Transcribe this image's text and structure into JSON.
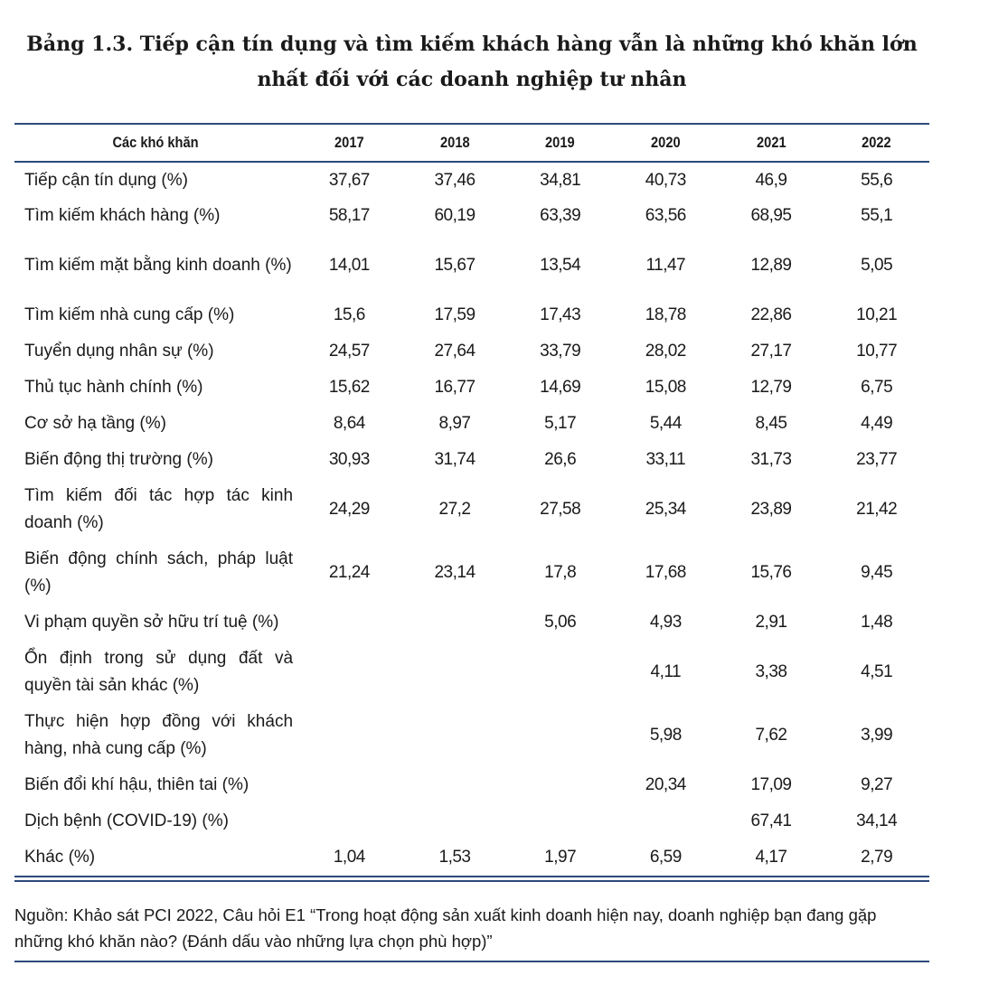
{
  "title_line1": "Bảng 1.3. Tiếp cận tín dụng và tìm kiếm khách hàng vẫn là những khó khăn lớn",
  "title_line2": "nhất đối với các doanh nghiệp tư nhân",
  "table": {
    "header": [
      "Các khó khăn",
      "2017",
      "2018",
      "2019",
      "2020",
      "2021",
      "2022"
    ],
    "rows": [
      {
        "label": "Tiếp cận tín dụng (%)",
        "values": [
          "37,67",
          "37,46",
          "34,81",
          "40,73",
          "46,9",
          "55,6"
        ]
      },
      {
        "label": "Tìm kiếm khách hàng (%)",
        "values": [
          "58,17",
          "60,19",
          "63,39",
          "63,56",
          "68,95",
          "55,1"
        ]
      },
      {
        "label": "Tìm kiếm mặt bằng kinh doanh (%)",
        "values": [
          "14,01",
          "15,67",
          "13,54",
          "11,47",
          "12,89",
          "5,05"
        ]
      },
      {
        "label": "Tìm kiếm nhà cung cấp (%)",
        "values": [
          "15,6",
          "17,59",
          "17,43",
          "18,78",
          "22,86",
          "10,21"
        ]
      },
      {
        "label": "Tuyển dụng nhân sự (%)",
        "values": [
          "24,57",
          "27,64",
          "33,79",
          "28,02",
          "27,17",
          "10,77"
        ]
      },
      {
        "label": "Thủ tục hành chính (%)",
        "values": [
          "15,62",
          "16,77",
          "14,69",
          "15,08",
          "12,79",
          "6,75"
        ]
      },
      {
        "label": "Cơ sở hạ tầng (%)",
        "values": [
          "8,64",
          "8,97",
          "5,17",
          "5,44",
          "8,45",
          "4,49"
        ]
      },
      {
        "label": "Biến động thị trường (%)",
        "values": [
          "30,93",
          "31,74",
          "26,6",
          "33,11",
          "31,73",
          "23,77"
        ]
      },
      {
        "label": "Tìm kiếm đối tác hợp tác kinh doanh (%)",
        "values": [
          "24,29",
          "27,2",
          "27,58",
          "25,34",
          "23,89",
          "21,42"
        ]
      },
      {
        "label": "Biến động chính sách, pháp luật (%)",
        "values": [
          "21,24",
          "23,14",
          "17,8",
          "17,68",
          "15,76",
          "9,45"
        ]
      },
      {
        "label": "Vi phạm quyền sở hữu trí tuệ (%)",
        "values": [
          "",
          "",
          "5,06",
          "4,93",
          "2,91",
          "1,48"
        ]
      },
      {
        "label": "Ổn định trong sử dụng đất và quyền tài sản khác (%)",
        "values": [
          "",
          "",
          "",
          "4,11",
          "3,38",
          "4,51"
        ]
      },
      {
        "label": "Thực hiện hợp đồng với khách hàng, nhà cung cấp (%)",
        "values": [
          "",
          "",
          "",
          "5,98",
          "7,62",
          "3,99"
        ]
      },
      {
        "label": "Biến đổi khí hậu, thiên tai (%)",
        "values": [
          "",
          "",
          "",
          "20,34",
          "17,09",
          "9,27"
        ]
      },
      {
        "label": "Dịch bệnh (COVID-19) (%)",
        "values": [
          "",
          "",
          "",
          "",
          "67,41",
          "34,14"
        ]
      },
      {
        "label": "Khác (%)",
        "values": [
          "1,04",
          "1,53",
          "1,97",
          "6,59",
          "4,17",
          "2,79"
        ]
      }
    ]
  },
  "source_note": "Nguồn: Khảo sát PCI 2022, Câu hỏi E1 “Trong hoạt động sản xuất kinh doanh hiện nay, doanh nghiệp bạn đang gặp những khó khăn nào? (Đánh dấu vào những lựa chọn phù hợp)”",
  "colors": {
    "rule": "#2c4a7a",
    "text": "#1a1a1a"
  }
}
